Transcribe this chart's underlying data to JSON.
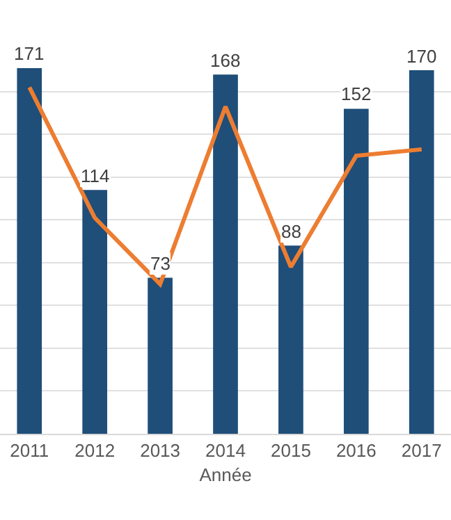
{
  "chart_data": {
    "type": "bar",
    "xlabel": "Année",
    "categories": [
      "2011",
      "2012",
      "2013",
      "2014",
      "2015",
      "2016",
      "2017"
    ],
    "series": [
      {
        "color": "#1f4e79",
        "values": [
          171,
          114,
          73,
          168,
          88,
          152,
          170
        ],
        "value_labels": [
          "171",
          "114",
          "73",
          "168",
          "88",
          "152",
          "170"
        ]
      },
      {
        "type": "line",
        "color": "#ed7d31",
        "values": [
          162,
          101,
          70,
          153,
          78,
          130,
          133
        ]
      }
    ],
    "yticks": [
      {
        "value": 0,
        "label": null
      },
      {
        "value": 20,
        "label": null
      },
      {
        "value": 40,
        "label": null
      },
      {
        "value": 60,
        "label": null
      },
      {
        "value": 80,
        "label": null
      },
      {
        "value": 100,
        "label": null
      },
      {
        "value": 120,
        "label": null
      },
      {
        "value": 140,
        "label": null
      },
      {
        "value": 160,
        "label": null
      }
    ],
    "grid": "y",
    "tick_labels": "x",
    "legend": false,
    "marker": "none",
    "line_style": "solid"
  }
}
